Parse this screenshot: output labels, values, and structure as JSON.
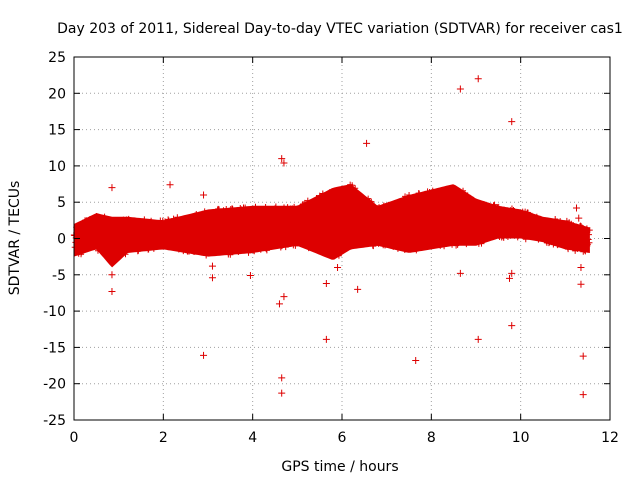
{
  "chart_data": {
    "type": "scatter",
    "title": "Day 203 of 2011, Sidereal Day-to-day VTEC variation (SDTVAR) for receiver cas1",
    "xlabel": "GPS time / hours",
    "ylabel": "SDTVAR / TECUs",
    "xlim": [
      0,
      12
    ],
    "ylim": [
      -25,
      25
    ],
    "x_ticks": [
      0,
      2,
      4,
      6,
      8,
      10,
      12
    ],
    "y_ticks": [
      -25,
      -20,
      -15,
      -10,
      -5,
      0,
      5,
      10,
      15,
      20,
      25
    ],
    "grid": true,
    "marker": "+",
    "color": "#dd0000",
    "band": [
      {
        "x": 0.0,
        "low": -2.5,
        "high": 2.0
      },
      {
        "x": 0.5,
        "low": -1.5,
        "high": 3.5
      },
      {
        "x": 0.85,
        "low": -4.0,
        "high": 3.0
      },
      {
        "x": 1.2,
        "low": -2.0,
        "high": 3.0
      },
      {
        "x": 2.0,
        "low": -1.5,
        "high": 2.5
      },
      {
        "x": 3.0,
        "low": -2.5,
        "high": 4.0
      },
      {
        "x": 4.0,
        "low": -2.0,
        "high": 4.5
      },
      {
        "x": 5.0,
        "low": -1.0,
        "high": 4.5
      },
      {
        "x": 5.8,
        "low": -3.0,
        "high": 7.0
      },
      {
        "x": 6.2,
        "low": -1.5,
        "high": 7.5
      },
      {
        "x": 6.8,
        "low": -1.0,
        "high": 4.5
      },
      {
        "x": 7.5,
        "low": -2.0,
        "high": 6.0
      },
      {
        "x": 8.5,
        "low": -1.0,
        "high": 7.5
      },
      {
        "x": 9.0,
        "low": -1.0,
        "high": 5.5
      },
      {
        "x": 9.5,
        "low": 0.0,
        "high": 4.5
      },
      {
        "x": 10.0,
        "low": 0.0,
        "high": 4.0
      },
      {
        "x": 10.5,
        "low": -0.5,
        "high": 3.0
      },
      {
        "x": 11.0,
        "low": -1.5,
        "high": 2.5
      },
      {
        "x": 11.55,
        "low": -2.0,
        "high": 1.5
      }
    ],
    "outliers": [
      {
        "x": 0.85,
        "y": 7.0
      },
      {
        "x": 0.85,
        "y": -7.3
      },
      {
        "x": 0.85,
        "y": -5.0
      },
      {
        "x": 2.15,
        "y": 7.4
      },
      {
        "x": 2.9,
        "y": 6.0
      },
      {
        "x": 2.9,
        "y": -16.1
      },
      {
        "x": 3.1,
        "y": -5.4
      },
      {
        "x": 3.1,
        "y": -3.8
      },
      {
        "x": 3.95,
        "y": -5.1
      },
      {
        "x": 4.65,
        "y": 11.0
      },
      {
        "x": 4.7,
        "y": 10.4
      },
      {
        "x": 4.6,
        "y": -9.0
      },
      {
        "x": 4.7,
        "y": -8.0
      },
      {
        "x": 4.65,
        "y": -19.2
      },
      {
        "x": 4.65,
        "y": -21.3
      },
      {
        "x": 5.65,
        "y": -13.9
      },
      {
        "x": 5.65,
        "y": -6.2
      },
      {
        "x": 5.9,
        "y": -4.0
      },
      {
        "x": 6.35,
        "y": -7.0
      },
      {
        "x": 6.55,
        "y": 13.1
      },
      {
        "x": 7.65,
        "y": -16.8
      },
      {
        "x": 8.65,
        "y": 20.6
      },
      {
        "x": 8.65,
        "y": -4.8
      },
      {
        "x": 9.05,
        "y": 22.0
      },
      {
        "x": 9.05,
        "y": -13.9
      },
      {
        "x": 9.8,
        "y": 16.1
      },
      {
        "x": 9.8,
        "y": -12.0
      },
      {
        "x": 9.75,
        "y": -5.5
      },
      {
        "x": 9.8,
        "y": -4.8
      },
      {
        "x": 11.25,
        "y": 4.2
      },
      {
        "x": 11.3,
        "y": 2.8
      },
      {
        "x": 11.35,
        "y": -4.0
      },
      {
        "x": 11.35,
        "y": -6.3
      },
      {
        "x": 11.4,
        "y": -16.2
      },
      {
        "x": 11.4,
        "y": -21.5
      }
    ]
  }
}
